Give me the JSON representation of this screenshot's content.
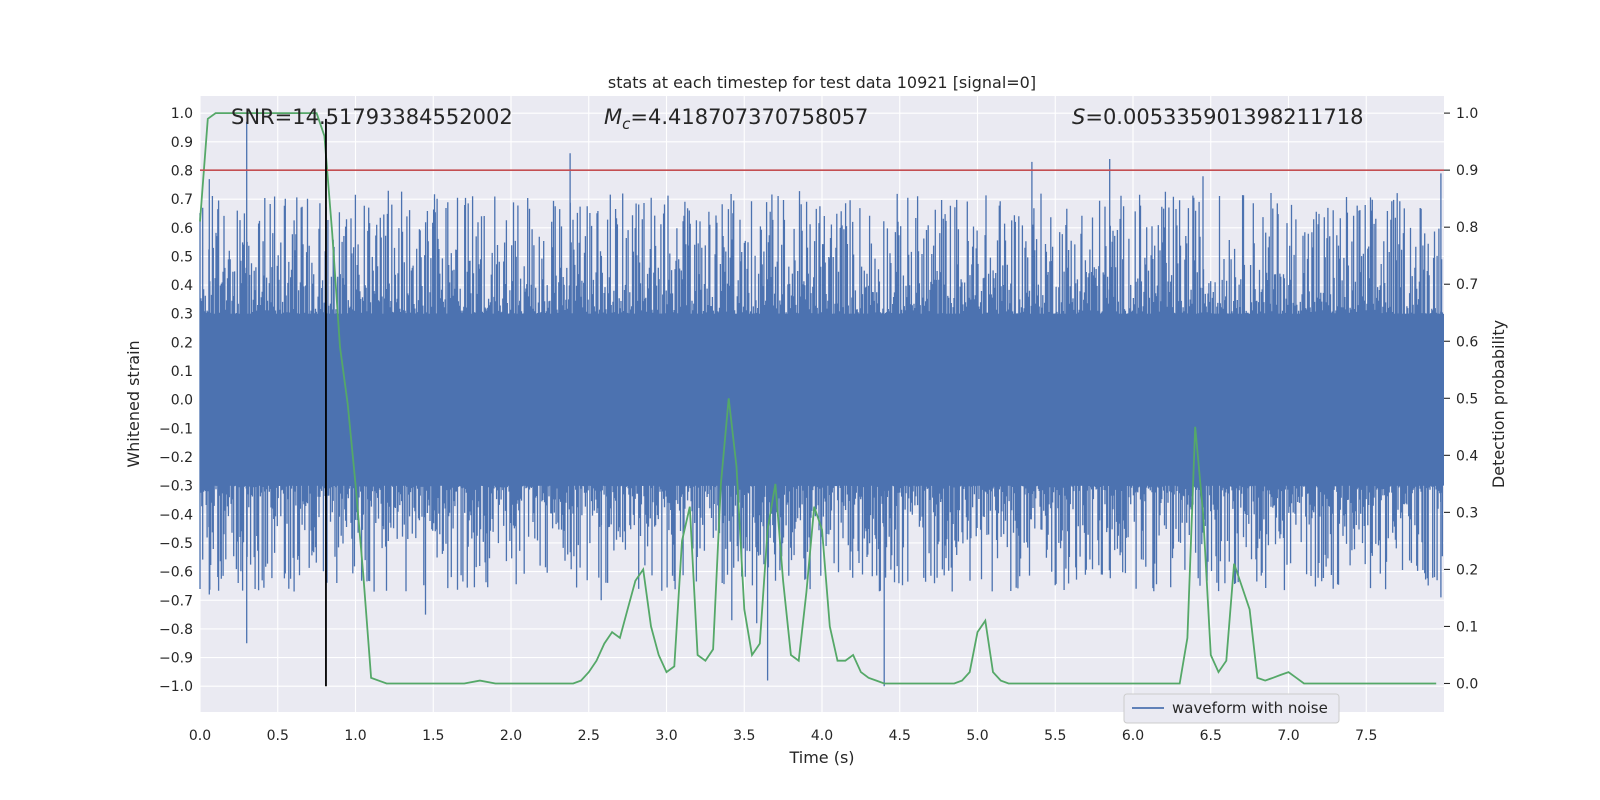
{
  "chart_data": {
    "type": "line",
    "title": "stats at each timestep for test data 10921 [signal=0]",
    "xlabel": "Time (s)",
    "ylabel_left": "Whitened strain",
    "ylabel_right": "Detection probability",
    "xlim": [
      0.0,
      8.0
    ],
    "ylim_left": [
      -1.09,
      1.06
    ],
    "ylim_right": [
      -0.05,
      1.03
    ],
    "x_ticks": [
      "0.0",
      "0.5",
      "1.0",
      "1.5",
      "2.0",
      "2.5",
      "3.0",
      "3.5",
      "4.0",
      "4.5",
      "5.0",
      "5.5",
      "6.0",
      "6.5",
      "7.0",
      "7.5"
    ],
    "x_tick_values": [
      0.0,
      0.5,
      1.0,
      1.5,
      2.0,
      2.5,
      3.0,
      3.5,
      4.0,
      4.5,
      5.0,
      5.5,
      6.0,
      6.5,
      7.0,
      7.5
    ],
    "y_left_ticks": [
      "1.0",
      "0.9",
      "0.8",
      "0.7",
      "0.6",
      "0.5",
      "0.4",
      "0.3",
      "0.2",
      "0.1",
      "0.0",
      "−0.1",
      "−0.2",
      "−0.3",
      "−0.4",
      "−0.5",
      "−0.6",
      "−0.7",
      "−0.8",
      "−0.9",
      "−1.0"
    ],
    "y_left_tick_values": [
      1.0,
      0.9,
      0.8,
      0.7,
      0.6,
      0.5,
      0.4,
      0.3,
      0.2,
      0.1,
      0.0,
      -0.1,
      -0.2,
      -0.3,
      -0.4,
      -0.5,
      -0.6,
      -0.7,
      -0.8,
      -0.9,
      -1.0
    ],
    "y_right_ticks": [
      "1.0",
      "0.9",
      "0.8",
      "0.7",
      "0.6",
      "0.5",
      "0.4",
      "0.3",
      "0.2",
      "0.1",
      "0.0"
    ],
    "y_right_tick_values": [
      1.0,
      0.9,
      0.8,
      0.7,
      0.6,
      0.5,
      0.4,
      0.3,
      0.2,
      0.1,
      0.0
    ],
    "annotations": {
      "snr": "SNR=14.51793384552002",
      "mc_symbol": "M",
      "mc_sub": "c",
      "mc_value": "=4.418707370758057",
      "s_symbol": "S",
      "s_value": "=0.005335901398211718"
    },
    "threshold": {
      "axis": "right",
      "value": 0.9,
      "color": "#c44e52"
    },
    "vertical_marker": {
      "x": 0.81,
      "color": "#000000"
    },
    "legend": {
      "label": "waveform with noise",
      "location": "lower-right"
    },
    "waveform_envelope": {
      "name": "waveform with noise",
      "axis": "left",
      "color": "#4c72b0",
      "core_band": [
        -0.3,
        0.3
      ],
      "typical_peak": 0.55,
      "spikes": [
        {
          "x": 0.3,
          "y": 0.97
        },
        {
          "x": 0.3,
          "y": -0.85
        },
        {
          "x": 0.06,
          "y": 0.77
        },
        {
          "x": 0.06,
          "y": -0.68
        },
        {
          "x": 2.38,
          "y": 0.86
        },
        {
          "x": 1.45,
          "y": -0.75
        },
        {
          "x": 3.42,
          "y": -0.77
        },
        {
          "x": 3.65,
          "y": -0.98
        },
        {
          "x": 4.4,
          "y": -1.0
        },
        {
          "x": 5.35,
          "y": 0.83
        },
        {
          "x": 5.85,
          "y": 0.84
        },
        {
          "x": 6.45,
          "y": 0.78
        },
        {
          "x": 7.98,
          "y": 0.79
        },
        {
          "x": 7.98,
          "y": -0.69
        },
        {
          "x": 2.58,
          "y": -0.7
        },
        {
          "x": 3.58,
          "y": -0.78
        }
      ]
    },
    "series": [
      {
        "name": "detection probability",
        "axis": "right",
        "color": "#55a868",
        "x": [
          0.0,
          0.05,
          0.1,
          0.15,
          0.2,
          0.3,
          0.4,
          0.5,
          0.6,
          0.7,
          0.75,
          0.8,
          0.85,
          0.9,
          0.95,
          1.0,
          1.05,
          1.1,
          1.2,
          1.4,
          1.6,
          1.7,
          1.8,
          1.9,
          2.0,
          2.1,
          2.2,
          2.3,
          2.35,
          2.4,
          2.45,
          2.5,
          2.55,
          2.6,
          2.65,
          2.7,
          2.75,
          2.8,
          2.85,
          2.9,
          2.95,
          3.0,
          3.05,
          3.1,
          3.15,
          3.2,
          3.25,
          3.3,
          3.35,
          3.4,
          3.45,
          3.5,
          3.55,
          3.6,
          3.65,
          3.7,
          3.75,
          3.8,
          3.85,
          3.9,
          3.95,
          4.0,
          4.05,
          4.1,
          4.15,
          4.2,
          4.25,
          4.3,
          4.35,
          4.4,
          4.5,
          4.7,
          4.85,
          4.9,
          4.95,
          5.0,
          5.05,
          5.1,
          5.15,
          5.2,
          5.3,
          5.4,
          5.5,
          5.6,
          5.8,
          5.9,
          6.0,
          6.1,
          6.2,
          6.3,
          6.35,
          6.4,
          6.45,
          6.5,
          6.55,
          6.6,
          6.65,
          6.7,
          6.75,
          6.8,
          6.85,
          6.9,
          6.95,
          7.0,
          7.05,
          7.1,
          7.15,
          7.2,
          7.3,
          7.4,
          7.6,
          7.8,
          7.95
        ],
        "y": [
          0.81,
          0.99,
          1.0,
          1.0,
          1.0,
          1.0,
          1.0,
          1.0,
          1.0,
          1.0,
          1.0,
          0.96,
          0.79,
          0.59,
          0.49,
          0.35,
          0.19,
          0.01,
          0.0,
          0.0,
          0.0,
          0.0,
          0.005,
          0.0,
          0.0,
          0.0,
          0.0,
          0.0,
          0.0,
          0.0,
          0.005,
          0.02,
          0.04,
          0.07,
          0.09,
          0.08,
          0.13,
          0.18,
          0.2,
          0.1,
          0.05,
          0.02,
          0.03,
          0.25,
          0.31,
          0.05,
          0.04,
          0.06,
          0.35,
          0.5,
          0.38,
          0.13,
          0.05,
          0.07,
          0.27,
          0.35,
          0.18,
          0.05,
          0.04,
          0.16,
          0.31,
          0.27,
          0.1,
          0.04,
          0.04,
          0.05,
          0.02,
          0.01,
          0.005,
          0.0,
          0.0,
          0.0,
          0.0,
          0.005,
          0.02,
          0.09,
          0.11,
          0.02,
          0.005,
          0.0,
          0.0,
          0.0,
          0.0,
          0.0,
          0.0,
          0.0,
          0.0,
          0.0,
          0.0,
          0.0,
          0.08,
          0.45,
          0.3,
          0.05,
          0.02,
          0.04,
          0.21,
          0.17,
          0.13,
          0.01,
          0.005,
          0.01,
          0.015,
          0.02,
          0.01,
          0.0,
          0.0,
          0.0,
          0.0,
          0.0,
          0.0,
          0.0,
          0.0
        ]
      }
    ]
  }
}
